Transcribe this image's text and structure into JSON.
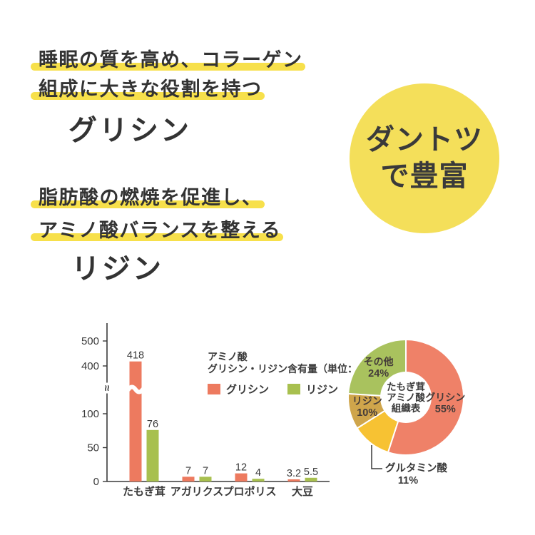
{
  "intro_blocks": [
    {
      "lines": [
        "睡眠の質を高め、コラーゲン",
        "組成に大きな役割を持つ"
      ],
      "keyword": "グリシン"
    },
    {
      "lines": [
        "脂肪酸の燃焼を促進し、",
        "アミノ酸バランスを整える"
      ],
      "keyword": "リジン"
    }
  ],
  "badge": {
    "lines": [
      "ダントツ",
      "で豊富"
    ]
  },
  "colors": {
    "text": "#3a3a3a",
    "highlight_yellow": "#f7e04b",
    "badge_yellow": "#f4df5a",
    "glycine_salmon": "#ed7a5f",
    "lysine_green": "#a8c04f",
    "axis": "#3a3a3a"
  },
  "chart_data": [
    {
      "type": "bar",
      "legend_title_lines": [
        "アミノ酸",
        "グリシン・リジン含有量（単位：mg）"
      ],
      "categories": [
        "たもぎ茸",
        "アガリクス",
        "プロポリス",
        "大豆"
      ],
      "series": [
        {
          "name": "グリシン",
          "color": "#ed7a5f",
          "values": [
            418,
            7,
            12,
            3.2
          ],
          "labels": [
            "418",
            "7",
            "12",
            "3.2"
          ]
        },
        {
          "name": "リジン",
          "color": "#a8c04f",
          "values": [
            76,
            7,
            4,
            5.5
          ],
          "labels": [
            "76",
            "7",
            "4",
            "5.5"
          ]
        }
      ],
      "yticks": [
        0,
        50,
        100,
        400,
        500
      ],
      "ylim": [
        0,
        520
      ],
      "axis_break_between": [
        100,
        400
      ],
      "grid": false,
      "unit": "mg"
    },
    {
      "type": "pie",
      "donut": true,
      "center_label_lines": [
        "たもぎ茸",
        "アミノ酸",
        "組織表"
      ],
      "start_angle_deg": 0,
      "direction": "clockwise",
      "slices": [
        {
          "label": "グリシン",
          "pct": 55,
          "color": "#ef8168",
          "label_outside": false
        },
        {
          "label": "グルタミン酸",
          "pct": 11,
          "color": "#f7c233",
          "label_outside": true
        },
        {
          "label": "リジン",
          "pct": 10,
          "color": "#cfa54b",
          "label_outside": false
        },
        {
          "label": "その他",
          "pct": 24,
          "color": "#a9c25e",
          "label_outside": false
        }
      ]
    }
  ]
}
